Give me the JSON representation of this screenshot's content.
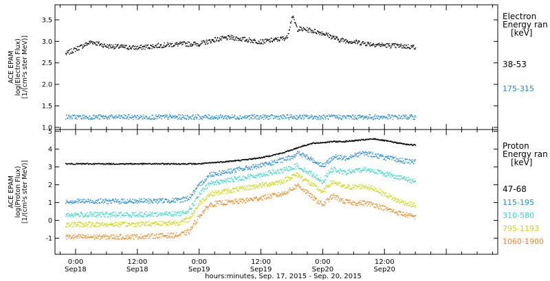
{
  "chart_data": [
    {
      "type": "scatter",
      "panel": "electron",
      "ylabel_lines": [
        "ACE EPAM",
        "log(Electron Flux)",
        "[1/(cm²s ster MeV)]"
      ],
      "ylim": [
        0.95,
        3.85
      ],
      "yticks": [
        1.0,
        1.5,
        2.0,
        2.5,
        3.0,
        3.5
      ],
      "ytick_labels": [
        "1.0",
        "1.5",
        "2.0",
        "2.5",
        "3.0",
        "3.5"
      ],
      "legend_title": [
        "Electron",
        "Energy ran",
        "[keV]"
      ],
      "series": [
        {
          "name": "38-53",
          "color": "#000000",
          "x": [
            -2,
            3,
            6,
            9,
            12,
            15,
            18,
            21,
            24,
            27,
            30,
            33,
            36,
            39,
            41,
            42,
            43,
            45,
            48,
            51,
            54,
            57,
            60,
            63,
            66
          ],
          "y": [
            2.72,
            3.0,
            2.9,
            2.88,
            2.86,
            2.9,
            2.93,
            2.95,
            2.95,
            3.05,
            3.1,
            3.05,
            3.0,
            3.05,
            3.1,
            3.6,
            3.3,
            3.28,
            3.2,
            3.05,
            3.0,
            2.95,
            2.92,
            2.9,
            2.88
          ]
        },
        {
          "name": "175-315",
          "color": "#1e88d8",
          "x": [
            -2,
            66
          ],
          "y": [
            1.25,
            1.25
          ]
        }
      ]
    },
    {
      "type": "scatter",
      "panel": "proton",
      "ylabel_lines": [
        "ACE EPAM",
        "log(Proton Flux)",
        "[1/(cm²s ster MeV)]"
      ],
      "ylim": [
        -1.9,
        5.1
      ],
      "yticks": [
        -1,
        0,
        1,
        2,
        3,
        4,
        5
      ],
      "ytick_labels": [
        "-1",
        "0",
        "1",
        "2",
        "3",
        "4",
        "5"
      ],
      "legend_title": [
        "Proton",
        "Energy ran",
        "[keV]"
      ],
      "series": [
        {
          "name": "47-68",
          "color": "#000000",
          "x": [
            -2,
            10,
            20,
            24,
            28,
            32,
            36,
            40,
            42,
            44,
            46,
            48,
            50,
            52,
            54,
            56,
            58,
            60,
            62,
            64,
            66
          ],
          "y": [
            3.2,
            3.2,
            3.2,
            3.2,
            3.3,
            3.4,
            3.55,
            3.8,
            4.0,
            4.2,
            4.35,
            4.4,
            4.45,
            4.45,
            4.5,
            4.55,
            4.6,
            4.5,
            4.4,
            4.3,
            4.25
          ]
        },
        {
          "name": "115-195",
          "color": "#1e88d8",
          "x": [
            -2,
            10,
            20,
            22,
            24,
            26,
            28,
            32,
            36,
            40,
            42,
            43,
            44,
            46,
            48,
            49,
            50,
            52,
            54,
            56,
            58,
            60,
            62,
            64,
            66
          ],
          "y": [
            1.1,
            1.1,
            1.15,
            1.3,
            2.0,
            2.6,
            2.7,
            2.9,
            3.1,
            3.4,
            3.6,
            3.8,
            3.7,
            3.4,
            3.1,
            3.3,
            3.6,
            3.5,
            3.7,
            3.8,
            3.7,
            3.55,
            3.45,
            3.35,
            3.3
          ]
        },
        {
          "name": "310-580",
          "color": "#32d8c8",
          "x": [
            -2,
            10,
            20,
            22,
            24,
            26,
            28,
            32,
            36,
            40,
            42,
            43,
            44,
            46,
            48,
            49,
            50,
            52,
            54,
            56,
            58,
            60,
            62,
            64,
            66
          ],
          "y": [
            0.35,
            0.35,
            0.4,
            0.6,
            1.5,
            2.1,
            2.2,
            2.4,
            2.6,
            2.8,
            3.0,
            3.1,
            2.9,
            2.6,
            2.2,
            2.7,
            2.9,
            2.7,
            2.8,
            2.9,
            2.8,
            2.65,
            2.5,
            2.35,
            2.2
          ]
        },
        {
          "name": "795-1193",
          "color": "#c8d800",
          "x": [
            -2,
            10,
            20,
            22,
            24,
            26,
            28,
            32,
            36,
            40,
            42,
            43,
            44,
            46,
            48,
            49,
            50,
            52,
            54,
            56,
            58,
            60,
            62,
            64,
            66
          ],
          "y": [
            -0.2,
            -0.2,
            -0.1,
            0.1,
            1.0,
            1.5,
            1.6,
            1.8,
            2.0,
            2.2,
            2.5,
            2.6,
            2.4,
            2.0,
            1.6,
            2.0,
            2.2,
            1.9,
            1.9,
            1.95,
            1.8,
            1.5,
            1.2,
            1.0,
            0.85
          ]
        },
        {
          "name": "1060-1900",
          "color": "#e88a20",
          "x": [
            -2,
            10,
            20,
            22,
            24,
            26,
            28,
            32,
            36,
            40,
            42,
            43,
            44,
            46,
            48,
            49,
            50,
            52,
            54,
            56,
            58,
            60,
            62,
            64,
            66
          ],
          "y": [
            -0.9,
            -0.9,
            -0.8,
            -0.6,
            0.3,
            0.9,
            1.0,
            1.1,
            1.3,
            1.5,
            1.8,
            2.0,
            1.8,
            1.3,
            0.9,
            1.2,
            1.4,
            1.1,
            1.0,
            1.0,
            0.9,
            0.7,
            0.5,
            0.35,
            0.2
          ]
        }
      ]
    }
  ],
  "x_axis": {
    "label": "hours:minutes, Sep. 17, 2015 - Sep. 20, 2015",
    "xlim": [
      -4,
      82
    ],
    "major_ticks": [
      0,
      12,
      24,
      36,
      48,
      60
    ],
    "tick_labels": [
      {
        "time": "0:00",
        "date": "Sep18"
      },
      {
        "time": "12:00",
        "date": "Sep18"
      },
      {
        "time": "0:00",
        "date": "Sep19"
      },
      {
        "time": "12:00",
        "date": "Sep19"
      },
      {
        "time": "0:00",
        "date": "Sep20"
      },
      {
        "time": "12:00",
        "date": "Sep20"
      }
    ]
  }
}
